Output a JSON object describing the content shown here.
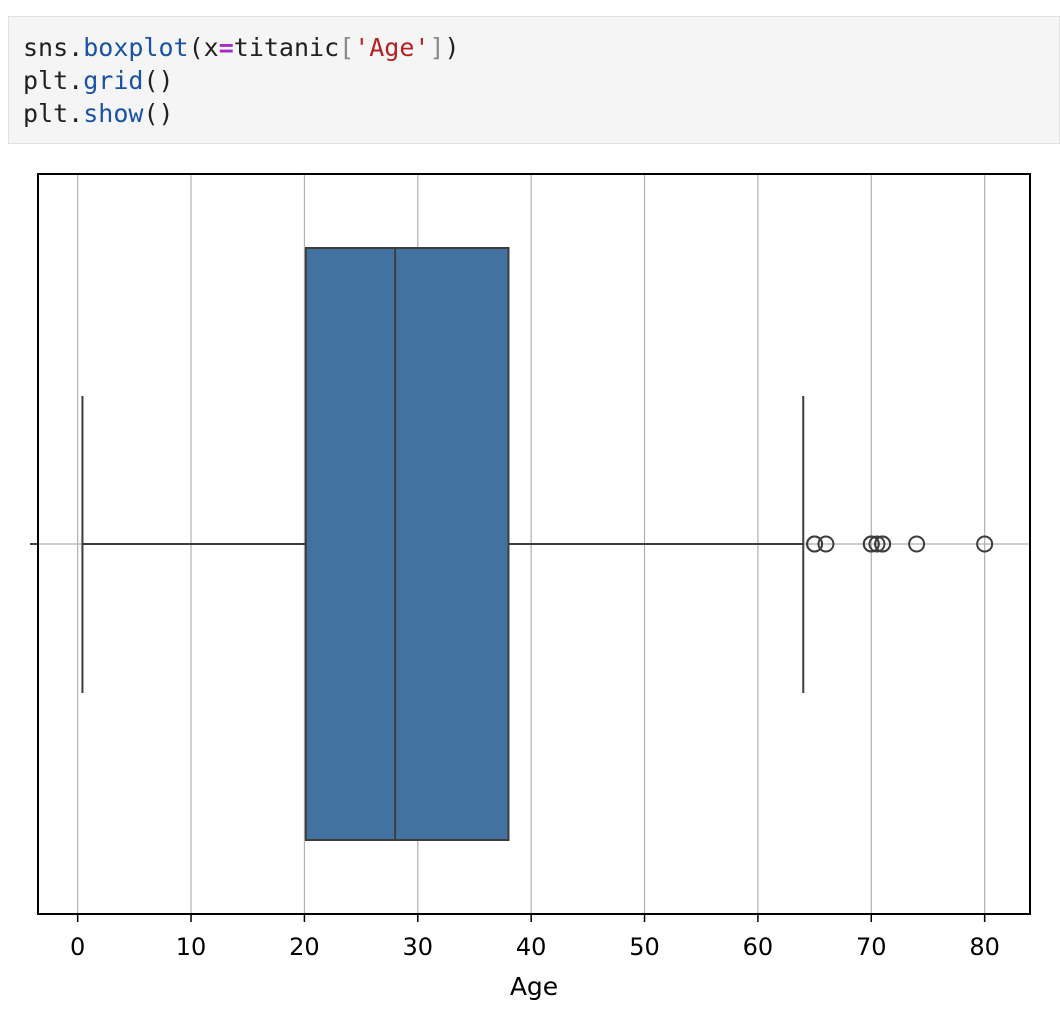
{
  "code": {
    "line1": {
      "obj": "sns.",
      "fn": "boxplot",
      "open": "(",
      "arg": "x",
      "eq": "=",
      "var": "titanic",
      "lbr": "[",
      "str": "'Age'",
      "rbr": "]",
      "close": ")"
    },
    "line2": {
      "obj": "plt.",
      "fn": "grid",
      "parens": "()"
    },
    "line3": {
      "obj": "plt.",
      "fn": "show",
      "parens": "()"
    }
  },
  "chart_data": {
    "type": "boxplot",
    "xlabel": "Age",
    "ylabel": "",
    "title": "",
    "xlim": [
      -3.5,
      84.0
    ],
    "xticks": [
      0,
      10,
      20,
      30,
      40,
      50,
      60,
      70,
      80
    ],
    "grid": true,
    "box": {
      "whisker_low": 0.42,
      "q1": 20.125,
      "median": 28.0,
      "q3": 38.0,
      "whisker_high": 64.0,
      "fill_color": "#4472a0",
      "edge_color": "#3d3d3d"
    },
    "outliers": [
      65,
      65,
      66,
      70,
      70,
      70.5,
      71,
      71,
      74,
      80
    ]
  }
}
